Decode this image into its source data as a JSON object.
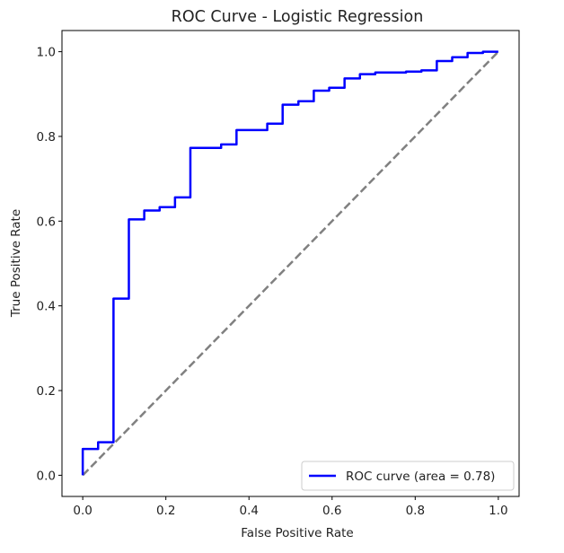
{
  "chart_data": {
    "type": "line",
    "title": "ROC Curve - Logistic Regression",
    "xlabel": "False Positive Rate",
    "ylabel": "True Positive Rate",
    "xlim": [
      -0.05,
      1.05
    ],
    "ylim": [
      -0.05,
      1.05
    ],
    "xticks": [
      0.0,
      0.2,
      0.4,
      0.6,
      0.8,
      1.0
    ],
    "yticks": [
      0.0,
      0.2,
      0.4,
      0.6,
      0.8,
      1.0
    ],
    "xtick_labels": [
      "0.0",
      "0.2",
      "0.4",
      "0.6",
      "0.8",
      "1.0"
    ],
    "ytick_labels": [
      "0.0",
      "0.2",
      "0.4",
      "0.6",
      "0.8",
      "1.0"
    ],
    "grid": false,
    "legend_position": "lower-right",
    "series": [
      {
        "name": "ROC curve (area = 0.78)",
        "color": "#0000ff",
        "style": "solid",
        "x": [
          0.0,
          0.0,
          0.037,
          0.037,
          0.074,
          0.074,
          0.111,
          0.111,
          0.148,
          0.148,
          0.185,
          0.185,
          0.222,
          0.222,
          0.259,
          0.259,
          0.333,
          0.333,
          0.37,
          0.37,
          0.444,
          0.444,
          0.481,
          0.481,
          0.519,
          0.519,
          0.556,
          0.556,
          0.593,
          0.593,
          0.63,
          0.63,
          0.667,
          0.667,
          0.704,
          0.704,
          0.778,
          0.778,
          0.815,
          0.815,
          0.852,
          0.852,
          0.889,
          0.889,
          0.926,
          0.926,
          0.963,
          0.963,
          1.0
        ],
        "y": [
          0.0,
          0.062,
          0.062,
          0.078,
          0.078,
          0.417,
          0.417,
          0.604,
          0.604,
          0.625,
          0.625,
          0.633,
          0.633,
          0.656,
          0.656,
          0.773,
          0.773,
          0.781,
          0.781,
          0.815,
          0.815,
          0.83,
          0.83,
          0.875,
          0.875,
          0.883,
          0.883,
          0.908,
          0.908,
          0.915,
          0.915,
          0.937,
          0.937,
          0.947,
          0.947,
          0.951,
          0.951,
          0.953,
          0.953,
          0.956,
          0.956,
          0.978,
          0.978,
          0.987,
          0.987,
          0.997,
          0.997,
          1.0,
          1.0
        ]
      },
      {
        "name": "",
        "color": "#808080",
        "style": "dashed",
        "x": [
          0.0,
          1.0
        ],
        "y": [
          0.0,
          1.0
        ]
      }
    ]
  }
}
